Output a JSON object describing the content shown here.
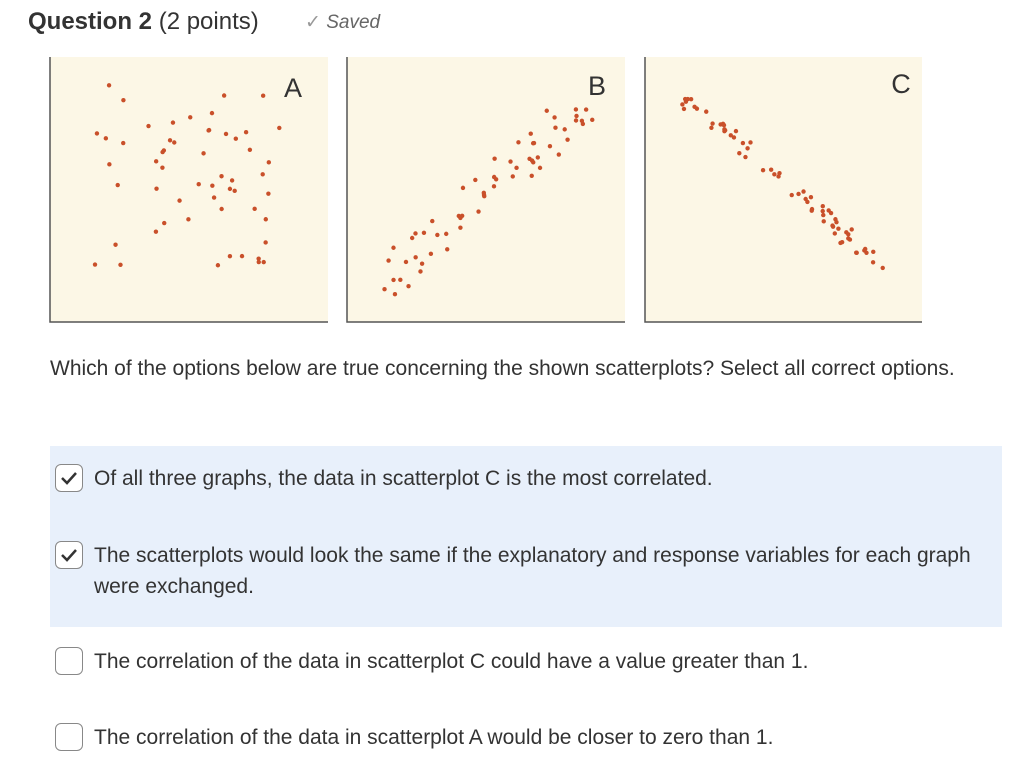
{
  "header": {
    "title": "Question 2",
    "points": "(2 points)",
    "status": "Saved"
  },
  "plots": [
    {
      "label": "A"
    },
    {
      "label": "B"
    },
    {
      "label": "C"
    }
  ],
  "question": "Which of the options below are true concerning the shown scatterplots? Select all correct options.",
  "options": [
    {
      "text": "Of all three graphs, the data in scatterplot C is the most correlated.",
      "checked": true
    },
    {
      "text": "The scatterplots would look the same if the explanatory and response variables for each graph were exchanged.",
      "checked": true
    },
    {
      "text": "The correlation of the data in scatterplot C could have a value greater than 1.",
      "checked": false
    },
    {
      "text": "The correlation of the data in scatterplot A would be closer to zero than 1.",
      "checked": false
    }
  ]
}
